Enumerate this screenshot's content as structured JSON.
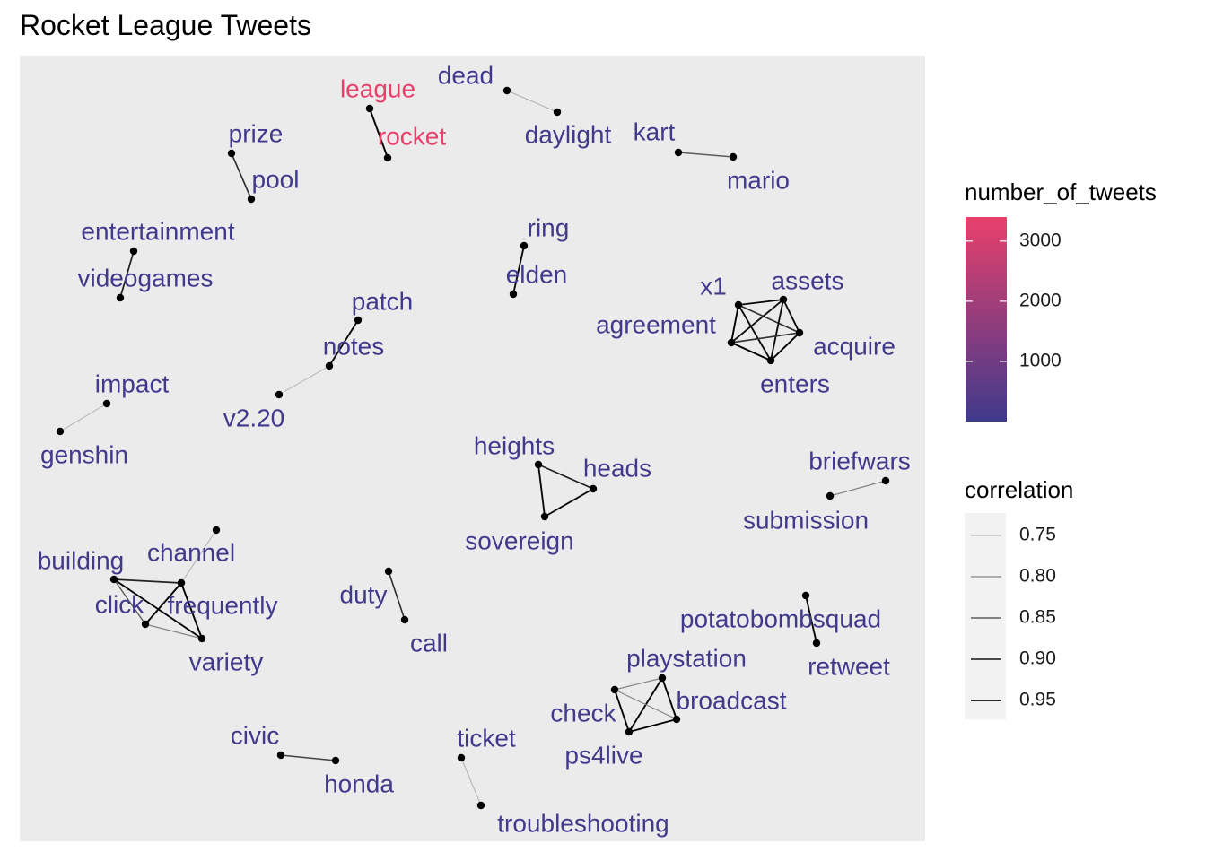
{
  "title": "Rocket League Tweets",
  "colors": {
    "panel": "#ebebeb",
    "low": "#3f3a8c",
    "high": "#e8406b",
    "point": "#000000"
  },
  "legend": {
    "color_title": "number_of_tweets",
    "color_breaks": [
      "1000",
      "2000",
      "3000"
    ],
    "corr_title": "correlation",
    "corr_breaks": [
      "0.75",
      "0.80",
      "0.85",
      "0.90",
      "0.95"
    ]
  },
  "chart_data": {
    "type": "network",
    "nodes": [
      {
        "id": "league",
        "label": "league",
        "tweets": 3400
      },
      {
        "id": "rocket",
        "label": "rocket",
        "tweets": 3400
      },
      {
        "id": "dead",
        "label": "dead",
        "tweets": 40
      },
      {
        "id": "daylight",
        "label": "daylight",
        "tweets": 40
      },
      {
        "id": "kart",
        "label": "kart",
        "tweets": 40
      },
      {
        "id": "mario",
        "label": "mario",
        "tweets": 40
      },
      {
        "id": "prize",
        "label": "prize",
        "tweets": 40
      },
      {
        "id": "pool",
        "label": "pool",
        "tweets": 40
      },
      {
        "id": "entertainment",
        "label": "entertainment",
        "tweets": 40
      },
      {
        "id": "videogames",
        "label": "videogames",
        "tweets": 40
      },
      {
        "id": "ring",
        "label": "ring",
        "tweets": 40
      },
      {
        "id": "elden",
        "label": "elden",
        "tweets": 40
      },
      {
        "id": "x1",
        "label": "x1",
        "tweets": 40
      },
      {
        "id": "assets",
        "label": "assets",
        "tweets": 40
      },
      {
        "id": "agreement",
        "label": "agreement",
        "tweets": 40
      },
      {
        "id": "acquire",
        "label": "acquire",
        "tweets": 40
      },
      {
        "id": "enters",
        "label": "enters",
        "tweets": 40
      },
      {
        "id": "patch",
        "label": "patch",
        "tweets": 40
      },
      {
        "id": "notes",
        "label": "notes",
        "tweets": 40
      },
      {
        "id": "v2.20",
        "label": "v2.20",
        "tweets": 40
      },
      {
        "id": "impact",
        "label": "impact",
        "tweets": 40
      },
      {
        "id": "genshin",
        "label": "genshin",
        "tweets": 40
      },
      {
        "id": "heights",
        "label": "heights",
        "tweets": 40
      },
      {
        "id": "heads",
        "label": "heads",
        "tweets": 40
      },
      {
        "id": "sovereign",
        "label": "sovereign",
        "tweets": 40
      },
      {
        "id": "briefwars",
        "label": "briefwars",
        "tweets": 40
      },
      {
        "id": "submission",
        "label": "submission",
        "tweets": 40
      },
      {
        "id": "channel",
        "label": "channel",
        "tweets": 40
      },
      {
        "id": "building",
        "label": "building",
        "tweets": 40
      },
      {
        "id": "click",
        "label": "click",
        "tweets": 40
      },
      {
        "id": "frequently",
        "label": "frequently",
        "tweets": 40
      },
      {
        "id": "variety",
        "label": "variety",
        "tweets": 40
      },
      {
        "id": "duty",
        "label": "duty",
        "tweets": 40
      },
      {
        "id": "call",
        "label": "call",
        "tweets": 40
      },
      {
        "id": "potatobombsquad",
        "label": "potatobombsquad",
        "tweets": 40
      },
      {
        "id": "retweet",
        "label": "retweet",
        "tweets": 40
      },
      {
        "id": "playstation",
        "label": "playstation",
        "tweets": 40
      },
      {
        "id": "broadcast",
        "label": "broadcast",
        "tweets": 40
      },
      {
        "id": "check",
        "label": "check",
        "tweets": 40
      },
      {
        "id": "ps4live",
        "label": "ps4live",
        "tweets": 40
      },
      {
        "id": "civic",
        "label": "civic",
        "tweets": 40
      },
      {
        "id": "honda",
        "label": "honda",
        "tweets": 40
      },
      {
        "id": "ticket",
        "label": "ticket",
        "tweets": 40
      },
      {
        "id": "troubleshooting",
        "label": "troubleshooting",
        "tweets": 40
      }
    ],
    "edges": [
      {
        "source": "league",
        "target": "rocket",
        "correlation": 0.96
      },
      {
        "source": "dead",
        "target": "daylight",
        "correlation": 0.75
      },
      {
        "source": "kart",
        "target": "mario",
        "correlation": 0.85
      },
      {
        "source": "prize",
        "target": "pool",
        "correlation": 0.9
      },
      {
        "source": "entertainment",
        "target": "videogames",
        "correlation": 0.92
      },
      {
        "source": "ring",
        "target": "elden",
        "correlation": 0.95
      },
      {
        "source": "x1",
        "target": "assets",
        "correlation": 0.95
      },
      {
        "source": "x1",
        "target": "agreement",
        "correlation": 0.96
      },
      {
        "source": "x1",
        "target": "acquire",
        "correlation": 0.9
      },
      {
        "source": "x1",
        "target": "enters",
        "correlation": 0.95
      },
      {
        "source": "assets",
        "target": "agreement",
        "correlation": 0.94
      },
      {
        "source": "assets",
        "target": "acquire",
        "correlation": 0.95
      },
      {
        "source": "assets",
        "target": "enters",
        "correlation": 0.95
      },
      {
        "source": "agreement",
        "target": "acquire",
        "correlation": 0.9
      },
      {
        "source": "agreement",
        "target": "enters",
        "correlation": 0.96
      },
      {
        "source": "acquire",
        "target": "enters",
        "correlation": 0.96
      },
      {
        "source": "patch",
        "target": "notes",
        "correlation": 0.95
      },
      {
        "source": "notes",
        "target": "v2.20",
        "correlation": 0.75
      },
      {
        "source": "impact",
        "target": "genshin",
        "correlation": 0.75
      },
      {
        "source": "heights",
        "target": "heads",
        "correlation": 0.92
      },
      {
        "source": "heights",
        "target": "sovereign",
        "correlation": 0.95
      },
      {
        "source": "heads",
        "target": "sovereign",
        "correlation": 0.95
      },
      {
        "source": "briefwars",
        "target": "submission",
        "correlation": 0.8
      },
      {
        "source": "channel",
        "target": "frequently",
        "correlation": 0.75
      },
      {
        "source": "building",
        "target": "frequently",
        "correlation": 0.92
      },
      {
        "source": "building",
        "target": "click",
        "correlation": 0.85
      },
      {
        "source": "building",
        "target": "variety",
        "correlation": 0.96
      },
      {
        "source": "click",
        "target": "frequently",
        "correlation": 0.96
      },
      {
        "source": "click",
        "target": "variety",
        "correlation": 0.8
      },
      {
        "source": "frequently",
        "target": "variety",
        "correlation": 0.96
      },
      {
        "source": "duty",
        "target": "call",
        "correlation": 0.9
      },
      {
        "source": "potatobombsquad",
        "target": "retweet",
        "correlation": 0.95
      },
      {
        "source": "playstation",
        "target": "broadcast",
        "correlation": 0.96
      },
      {
        "source": "playstation",
        "target": "ps4live",
        "correlation": 0.96
      },
      {
        "source": "playstation",
        "target": "check",
        "correlation": 0.8
      },
      {
        "source": "check",
        "target": "broadcast",
        "correlation": 0.8
      },
      {
        "source": "check",
        "target": "ps4live",
        "correlation": 0.96
      },
      {
        "source": "broadcast",
        "target": "ps4live",
        "correlation": 0.96
      },
      {
        "source": "civic",
        "target": "honda",
        "correlation": 0.88
      },
      {
        "source": "ticket",
        "target": "troubleshooting",
        "correlation": 0.75
      }
    ],
    "color_scale": {
      "min": 0,
      "max": 3400
    },
    "correlation_range": [
      0.75,
      0.96
    ]
  }
}
